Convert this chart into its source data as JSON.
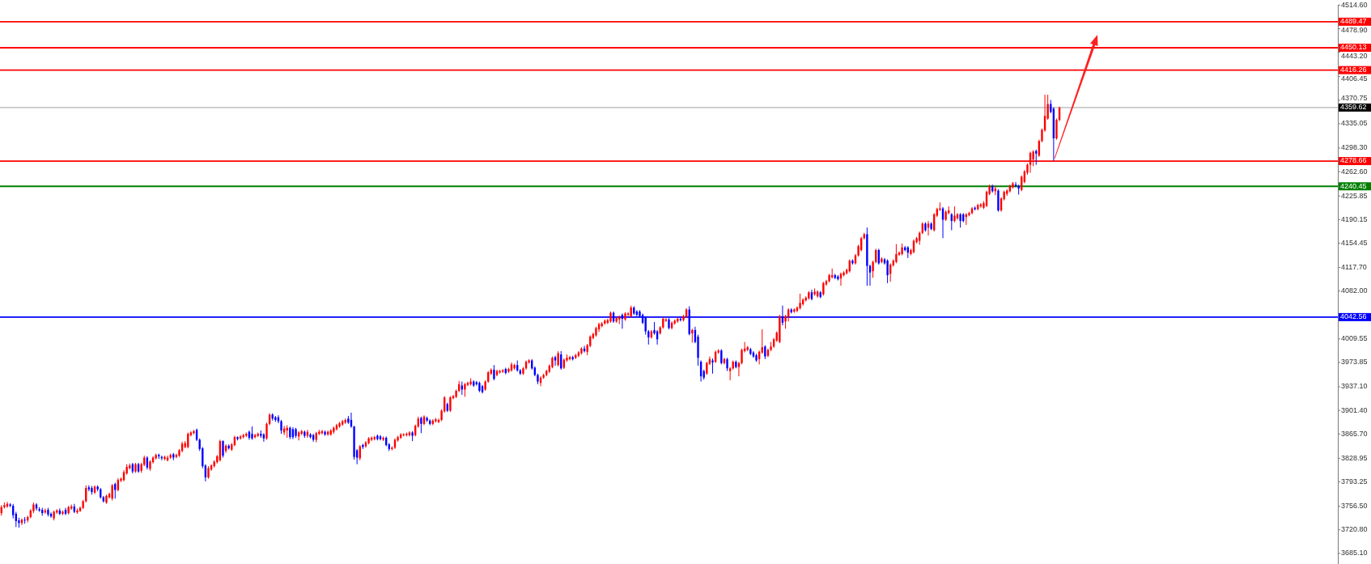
{
  "chart_data": {
    "type": "candlestick",
    "categories": [
      null,
      null,
      null,
      null,
      null,
      null,
      null,
      null,
      null,
      null,
      null,
      null,
      null,
      null,
      null,
      null,
      null,
      null,
      null,
      null,
      null,
      null,
      null,
      null,
      null,
      null,
      null,
      null,
      null,
      null,
      null,
      null,
      null,
      null,
      null,
      null,
      null,
      null,
      null,
      null,
      null,
      null,
      null,
      null,
      null,
      null,
      null,
      null,
      null,
      null,
      null,
      null,
      null,
      null,
      null,
      null,
      null,
      null,
      null,
      null,
      null,
      null,
      null,
      null,
      null,
      null,
      null,
      null,
      null,
      null,
      null,
      null,
      null,
      null,
      null,
      null,
      null,
      null,
      null,
      null,
      null,
      null,
      null,
      null,
      null,
      null,
      null,
      null,
      null,
      null,
      null,
      null,
      null,
      null,
      null,
      null,
      null,
      null,
      null,
      null,
      null,
      null,
      null,
      null,
      null,
      null,
      null,
      null,
      null,
      null,
      null,
      null,
      null,
      null,
      null,
      null,
      null,
      null,
      null,
      null,
      null,
      null,
      null,
      null,
      null,
      null,
      null,
      null,
      null,
      null,
      null,
      null,
      null,
      null,
      null,
      null,
      null,
      null,
      null,
      null,
      null,
      null,
      null,
      null,
      null,
      null,
      null,
      null,
      null,
      null,
      null,
      null,
      null,
      null,
      null,
      null,
      null,
      null,
      null,
      null,
      null,
      null,
      null,
      null,
      null,
      null,
      null,
      null,
      null,
      null,
      null,
      null,
      null,
      null,
      null,
      null,
      null,
      null,
      null,
      null,
      null,
      null,
      null,
      null,
      null,
      null,
      null,
      null,
      null,
      null,
      null,
      null,
      null,
      null,
      null,
      null,
      null,
      null,
      null,
      null,
      null,
      null,
      null,
      null,
      null,
      null,
      null,
      null,
      null,
      null,
      null,
      null,
      null,
      null,
      null,
      null,
      null,
      null,
      null,
      null,
      null,
      null,
      null,
      null,
      null,
      null,
      null,
      null,
      null,
      null,
      null,
      null,
      null,
      null,
      null,
      null,
      null,
      null,
      null,
      null,
      null,
      null,
      null,
      null,
      null,
      null,
      null,
      null,
      null,
      null,
      null,
      null,
      null,
      null,
      null,
      null,
      null,
      null,
      null,
      null,
      null,
      null,
      null,
      null,
      null,
      null,
      null,
      null,
      null,
      null,
      null,
      null,
      null,
      null,
      null,
      null,
      null,
      null,
      null,
      null,
      null,
      null,
      null,
      null,
      null,
      null,
      null,
      null,
      null,
      null,
      null,
      null,
      null,
      null,
      null,
      null,
      null,
      null,
      null,
      null,
      null,
      null,
      null,
      null,
      null,
      null,
      null,
      null,
      null,
      null,
      null,
      null,
      null,
      null,
      null,
      null,
      null,
      null,
      null,
      null,
      null,
      null,
      null,
      null,
      null,
      null,
      null,
      null,
      null,
      null,
      null,
      null,
      null,
      null,
      null,
      null,
      null,
      null,
      null,
      null,
      null,
      null,
      null,
      null,
      null,
      null,
      null,
      null,
      null,
      null,
      null,
      null,
      null,
      null,
      null,
      null,
      null,
      null,
      null,
      null,
      null,
      null,
      null,
      null,
      null,
      null,
      null,
      null,
      null,
      null,
      null,
      null,
      null,
      null,
      null,
      null,
      null,
      null,
      null,
      null,
      null,
      null,
      null,
      null,
      null,
      null,
      null,
      null,
      null,
      null,
      null,
      null,
      null,
      null,
      null,
      null,
      null,
      null,
      null,
      null,
      null,
      null,
      null,
      null,
      null,
      null,
      null,
      null,
      null,
      null,
      null,
      null,
      null,
      null,
      null,
      null,
      null,
      null,
      null,
      null,
      null,
      null,
      null,
      null,
      null,
      null,
      null,
      null,
      null,
      null,
      null,
      null,
      null,
      null,
      null,
      null,
      null,
      null,
      null,
      null,
      null,
      null,
      null,
      null,
      null,
      null,
      null,
      null,
      null,
      null,
      null,
      null,
      null,
      null,
      null,
      null,
      null,
      null,
      null
    ],
    "ohlc": [
      [
        3746,
        3758,
        3742,
        3755
      ],
      [
        3755,
        3762,
        3753,
        3758
      ],
      [
        3756,
        3763,
        3754,
        3760
      ],
      [
        3759,
        3761,
        3755,
        3757
      ],
      [
        3757,
        3760,
        3738,
        3743
      ],
      [
        3745,
        3748,
        3725,
        3734
      ],
      [
        3735,
        3739,
        3724,
        3731
      ],
      [
        3731,
        3738,
        3728,
        3736
      ],
      [
        3736,
        3740,
        3730,
        3735
      ],
      [
        3735,
        3742,
        3732,
        3740
      ],
      [
        3740,
        3752,
        3738,
        3750
      ],
      [
        3749,
        3762,
        3746,
        3759
      ],
      [
        3759,
        3761,
        3750,
        3753
      ],
      [
        3752,
        3755,
        3748,
        3750
      ],
      [
        3751,
        3754,
        3742,
        3746
      ],
      [
        3747,
        3753,
        3745,
        3750
      ],
      [
        3751,
        3754,
        3741,
        3744
      ],
      [
        3745,
        3747,
        3739,
        3741
      ],
      [
        3738,
        3750,
        3735,
        3748
      ],
      [
        3747,
        3752,
        3745,
        3750
      ],
      [
        3750,
        3753,
        3743,
        3745
      ],
      [
        3745,
        3750,
        3743,
        3748
      ],
      [
        3751,
        3754,
        3743,
        3745
      ],
      [
        3746,
        3757,
        3744,
        3755
      ],
      [
        3753,
        3759,
        3751,
        3756
      ],
      [
        3756,
        3760,
        3746,
        3748
      ],
      [
        3747,
        3753,
        3745,
        3750
      ],
      [
        3749,
        3756,
        3748,
        3754
      ],
      [
        3754,
        3766,
        3752,
        3764
      ],
      [
        3764,
        3788,
        3762,
        3784
      ],
      [
        3785,
        3788,
        3779,
        3782
      ],
      [
        3784,
        3787,
        3774,
        3778
      ],
      [
        3777,
        3788,
        3775,
        3786
      ],
      [
        3786,
        3788,
        3779,
        3782
      ],
      [
        3782,
        3784,
        3768,
        3770
      ],
      [
        3770,
        3772,
        3762,
        3764
      ],
      [
        3762,
        3774,
        3760,
        3772
      ],
      [
        3770,
        3777,
        3768,
        3775
      ],
      [
        3768,
        3790,
        3765,
        3788
      ],
      [
        3790,
        3792,
        3768,
        3781
      ],
      [
        3781,
        3799,
        3779,
        3796
      ],
      [
        3795,
        3800,
        3793,
        3798
      ],
      [
        3796,
        3811,
        3794,
        3808
      ],
      [
        3806,
        3820,
        3804,
        3816
      ],
      [
        3814,
        3821,
        3812,
        3818
      ],
      [
        3820,
        3822,
        3806,
        3809
      ],
      [
        3809,
        3822,
        3807,
        3820
      ],
      [
        3820,
        3822,
        3807,
        3809
      ],
      [
        3810,
        3822,
        3807,
        3820
      ],
      [
        3819,
        3833,
        3817,
        3830
      ],
      [
        3830,
        3832,
        3812,
        3815
      ],
      [
        3813,
        3826,
        3810,
        3824
      ],
      [
        3823,
        3832,
        3821,
        3830
      ],
      [
        3829,
        3836,
        3827,
        3834
      ],
      [
        3834,
        3836,
        3828,
        3832
      ],
      [
        3831,
        3833,
        3826,
        3829
      ],
      [
        3828,
        3833,
        3826,
        3831
      ],
      [
        3826,
        3833,
        3824,
        3830
      ],
      [
        3830,
        3836,
        3828,
        3834
      ],
      [
        3835,
        3837,
        3826,
        3830
      ],
      [
        3831,
        3836,
        3829,
        3834
      ],
      [
        3833,
        3843,
        3831,
        3841
      ],
      [
        3840,
        3854,
        3838,
        3851
      ],
      [
        3846,
        3855,
        3844,
        3852
      ],
      [
        3846,
        3868,
        3844,
        3866
      ],
      [
        3864,
        3870,
        3862,
        3868
      ],
      [
        3867,
        3872,
        3865,
        3870
      ],
      [
        3872,
        3874,
        3855,
        3857
      ],
      [
        3857,
        3859,
        3840,
        3843
      ],
      [
        3844,
        3846,
        3814,
        3817
      ],
      [
        3818,
        3820,
        3794,
        3800
      ],
      [
        3800,
        3817,
        3798,
        3814
      ],
      [
        3812,
        3820,
        3810,
        3818
      ],
      [
        3817,
        3826,
        3815,
        3824
      ],
      [
        3823,
        3834,
        3821,
        3832
      ],
      [
        3826,
        3857,
        3824,
        3855
      ],
      [
        3855,
        3856,
        3830,
        3833
      ],
      [
        3840,
        3850,
        3837,
        3848
      ],
      [
        3848,
        3850,
        3842,
        3844
      ],
      [
        3842,
        3852,
        3840,
        3850
      ],
      [
        3849,
        3863,
        3847,
        3861
      ],
      [
        3861,
        3862,
        3856,
        3858
      ],
      [
        3859,
        3864,
        3857,
        3862
      ],
      [
        3861,
        3866,
        3859,
        3864
      ],
      [
        3863,
        3868,
        3861,
        3866
      ],
      [
        3869,
        3871,
        3857,
        3860
      ],
      [
        3866,
        3877,
        3857,
        3859
      ],
      [
        3861,
        3866,
        3859,
        3864
      ],
      [
        3863,
        3868,
        3861,
        3866
      ],
      [
        3866,
        3871,
        3860,
        3863
      ],
      [
        3865,
        3867,
        3854,
        3859
      ],
      [
        3859,
        3883,
        3857,
        3881
      ],
      [
        3881,
        3897,
        3879,
        3895
      ],
      [
        3895,
        3897,
        3886,
        3889
      ],
      [
        3891,
        3893,
        3884,
        3887
      ],
      [
        3891,
        3894,
        3882,
        3885
      ],
      [
        3885,
        3887,
        3866,
        3871
      ],
      [
        3868,
        3878,
        3864,
        3874
      ],
      [
        3871,
        3879,
        3860,
        3875
      ],
      [
        3875,
        3877,
        3858,
        3861
      ],
      [
        3873,
        3876,
        3858,
        3861
      ],
      [
        3873,
        3875,
        3860,
        3863
      ],
      [
        3862,
        3870,
        3856,
        3868
      ],
      [
        3866,
        3872,
        3864,
        3870
      ],
      [
        3869,
        3871,
        3860,
        3863
      ],
      [
        3863,
        3872,
        3860,
        3869
      ],
      [
        3865,
        3867,
        3859,
        3861
      ],
      [
        3864,
        3866,
        3854,
        3857
      ],
      [
        3857,
        3869,
        3853,
        3867
      ],
      [
        3866,
        3872,
        3864,
        3869
      ],
      [
        3867,
        3872,
        3865,
        3870
      ],
      [
        3869,
        3871,
        3863,
        3865
      ],
      [
        3865,
        3871,
        3863,
        3869
      ],
      [
        3865,
        3873,
        3863,
        3871
      ],
      [
        3869,
        3877,
        3866,
        3875
      ],
      [
        3873,
        3881,
        3871,
        3879
      ],
      [
        3877,
        3884,
        3875,
        3882
      ],
      [
        3880,
        3887,
        3878,
        3885
      ],
      [
        3883,
        3889,
        3881,
        3887
      ],
      [
        3889,
        3893,
        3881,
        3883
      ],
      [
        3887,
        3898,
        3875,
        3877
      ],
      [
        3877,
        3878,
        3827,
        3831
      ],
      [
        3841,
        3843,
        3820,
        3830
      ],
      [
        3829,
        3849,
        3826,
        3847
      ],
      [
        3849,
        3851,
        3843,
        3846
      ],
      [
        3847,
        3855,
        3845,
        3853
      ],
      [
        3852,
        3861,
        3850,
        3859
      ],
      [
        3857,
        3862,
        3855,
        3860
      ],
      [
        3858,
        3863,
        3856,
        3861
      ],
      [
        3863,
        3865,
        3856,
        3858
      ],
      [
        3862,
        3864,
        3856,
        3858
      ],
      [
        3857,
        3862,
        3855,
        3860
      ],
      [
        3860,
        3862,
        3847,
        3849
      ],
      [
        3850,
        3852,
        3840,
        3843
      ],
      [
        3843,
        3847,
        3841,
        3845
      ],
      [
        3845,
        3859,
        3843,
        3857
      ],
      [
        3856,
        3863,
        3854,
        3861
      ],
      [
        3860,
        3867,
        3858,
        3865
      ],
      [
        3864,
        3867,
        3862,
        3865
      ],
      [
        3864,
        3868,
        3862,
        3866
      ],
      [
        3864,
        3870,
        3862,
        3868
      ],
      [
        3868,
        3870,
        3855,
        3863
      ],
      [
        3864,
        3880,
        3862,
        3878
      ],
      [
        3877,
        3892,
        3875,
        3889
      ],
      [
        3890,
        3892,
        3867,
        3881
      ],
      [
        3881,
        3894,
        3879,
        3892
      ],
      [
        3890,
        3892,
        3884,
        3886
      ],
      [
        3886,
        3888,
        3879,
        3881
      ],
      [
        3881,
        3888,
        3879,
        3886
      ],
      [
        3885,
        3890,
        3883,
        3888
      ],
      [
        3884,
        3889,
        3882,
        3887
      ],
      [
        3887,
        3903,
        3885,
        3901
      ],
      [
        3900,
        3923,
        3898,
        3921
      ],
      [
        3911,
        3913,
        3899,
        3901
      ],
      [
        3901,
        3923,
        3899,
        3921
      ],
      [
        3920,
        3925,
        3918,
        3923
      ],
      [
        3922,
        3933,
        3920,
        3931
      ],
      [
        3931,
        3946,
        3929,
        3941
      ],
      [
        3939,
        3945,
        3925,
        3933
      ],
      [
        3933,
        3943,
        3922,
        3941
      ],
      [
        3940,
        3945,
        3938,
        3943
      ],
      [
        3941,
        3950,
        3939,
        3945
      ],
      [
        3945,
        3947,
        3937,
        3939
      ],
      [
        3944,
        3946,
        3939,
        3941
      ],
      [
        3943,
        3945,
        3929,
        3931
      ],
      [
        3938,
        3940,
        3927,
        3929
      ],
      [
        3933,
        3947,
        3931,
        3945
      ],
      [
        3945,
        3961,
        3943,
        3959
      ],
      [
        3957,
        3965,
        3955,
        3963
      ],
      [
        3963,
        3970,
        3947,
        3949
      ],
      [
        3955,
        3963,
        3953,
        3961
      ],
      [
        3959,
        3963,
        3957,
        3961
      ],
      [
        3960,
        3964,
        3958,
        3962
      ],
      [
        3964,
        3966,
        3956,
        3958
      ],
      [
        3960,
        3966,
        3958,
        3964
      ],
      [
        3962,
        3974,
        3960,
        3971
      ],
      [
        3965,
        3972,
        3963,
        3970
      ],
      [
        3970,
        3977,
        3960,
        3962
      ],
      [
        3962,
        3964,
        3955,
        3957
      ],
      [
        3957,
        3967,
        3955,
        3965
      ],
      [
        3965,
        3977,
        3963,
        3975
      ],
      [
        3974,
        3979,
        3972,
        3977
      ],
      [
        3977,
        3979,
        3963,
        3965
      ],
      [
        3966,
        3968,
        3953,
        3955
      ],
      [
        3955,
        3957,
        3941,
        3945
      ],
      [
        3943,
        3953,
        3938,
        3951
      ],
      [
        3951,
        3957,
        3949,
        3955
      ],
      [
        3955,
        3963,
        3953,
        3961
      ],
      [
        3960,
        3971,
        3958,
        3969
      ],
      [
        3967,
        3983,
        3965,
        3981
      ],
      [
        3982,
        3984,
        3969,
        3977
      ],
      [
        3970,
        3991,
        3968,
        3988
      ],
      [
        3986,
        3991,
        3963,
        3965
      ],
      [
        3966,
        3980,
        3964,
        3978
      ],
      [
        3977,
        3986,
        3975,
        3981
      ],
      [
        3979,
        3984,
        3977,
        3982
      ],
      [
        3982,
        3984,
        3977,
        3979
      ],
      [
        3981,
        3987,
        3979,
        3985
      ],
      [
        3984,
        3991,
        3982,
        3989
      ],
      [
        3988,
        3997,
        3986,
        3995
      ],
      [
        3995,
        3999,
        3989,
        3991
      ],
      [
        3990,
        4002,
        3985,
        4000
      ],
      [
        3999,
        4015,
        3997,
        4013
      ],
      [
        4011,
        4019,
        4009,
        4017
      ],
      [
        4015,
        4028,
        4013,
        4026
      ],
      [
        4024,
        4034,
        4020,
        4032
      ],
      [
        4029,
        4035,
        4027,
        4033
      ],
      [
        4033,
        4039,
        4031,
        4037
      ],
      [
        4034,
        4040,
        4032,
        4038
      ],
      [
        4036,
        4051,
        4034,
        4049
      ],
      [
        4049,
        4051,
        4034,
        4036
      ],
      [
        4036,
        4043,
        4034,
        4041
      ],
      [
        4039,
        4045,
        4032,
        4043
      ],
      [
        4046,
        4048,
        4025,
        4040
      ],
      [
        4039,
        4050,
        4037,
        4048
      ],
      [
        4046,
        4050,
        4044,
        4048
      ],
      [
        4044,
        4060,
        4042,
        4057
      ],
      [
        4057,
        4059,
        4046,
        4048
      ],
      [
        4051,
        4053,
        4044,
        4046
      ],
      [
        4051,
        4053,
        4042,
        4044
      ],
      [
        4046,
        4048,
        4032,
        4034
      ],
      [
        4042,
        4044,
        4016,
        4021
      ],
      [
        4021,
        4023,
        4001,
        4012
      ],
      [
        4012,
        4023,
        4010,
        4021
      ],
      [
        4023,
        4035,
        4016,
        4018
      ],
      [
        4021,
        4023,
        4001,
        4009
      ],
      [
        4018,
        4029,
        4016,
        4027
      ],
      [
        4027,
        4042,
        4025,
        4040
      ],
      [
        4037,
        4041,
        4035,
        4039
      ],
      [
        4039,
        4041,
        4024,
        4026
      ],
      [
        4026,
        4036,
        4024,
        4034
      ],
      [
        4033,
        4039,
        4031,
        4037
      ],
      [
        4036,
        4042,
        4034,
        4040
      ],
      [
        4040,
        4042,
        4036,
        4038
      ],
      [
        4038,
        4046,
        4036,
        4044
      ],
      [
        4043,
        4056,
        4041,
        4054
      ],
      [
        4054,
        4059,
        4015,
        4017
      ],
      [
        4018,
        4025,
        4004,
        4023
      ],
      [
        4023,
        4028,
        4003,
        4005
      ],
      [
        4013,
        4016,
        3969,
        3981
      ],
      [
        3975,
        3977,
        3945,
        3953
      ],
      [
        3961,
        3963,
        3948,
        3951
      ],
      [
        3957,
        3975,
        3955,
        3973
      ],
      [
        3972,
        3983,
        3970,
        3979
      ],
      [
        3977,
        3980,
        3957,
        3974
      ],
      [
        3975,
        3992,
        3973,
        3990
      ],
      [
        3989,
        3994,
        3987,
        3992
      ],
      [
        3992,
        3994,
        3971,
        3973
      ],
      [
        3973,
        3981,
        3971,
        3979
      ],
      [
        3979,
        3981,
        3961,
        3965
      ],
      [
        3961,
        3967,
        3947,
        3965
      ],
      [
        3965,
        3977,
        3963,
        3975
      ],
      [
        3975,
        3977,
        3965,
        3967
      ],
      [
        3967,
        3975,
        3953,
        3973
      ],
      [
        3973,
        3995,
        3971,
        3993
      ],
      [
        3991,
        4005,
        3989,
        3995
      ],
      [
        3993,
        3999,
        3991,
        3997
      ],
      [
        3994,
        3996,
        3985,
        3987
      ],
      [
        3989,
        3991,
        3981,
        3983
      ],
      [
        3985,
        3987,
        3975,
        3977
      ],
      [
        3979,
        3992,
        3971,
        3990
      ],
      [
        3989,
        4024,
        3987,
        3997
      ],
      [
        3998,
        4000,
        3979,
        3983
      ],
      [
        3984,
        3995,
        3982,
        3993
      ],
      [
        3993,
        4005,
        3991,
        3998
      ],
      [
        3998,
        4011,
        3996,
        4009
      ],
      [
        4007,
        4021,
        4005,
        4019
      ],
      [
        4005,
        4046,
        4003,
        4044
      ],
      [
        4044,
        4060,
        4030,
        4034
      ],
      [
        4036,
        4046,
        4025,
        4044
      ],
      [
        4043,
        4056,
        4036,
        4054
      ],
      [
        4054,
        4056,
        4048,
        4050
      ],
      [
        4051,
        4056,
        4049,
        4054
      ],
      [
        4052,
        4059,
        4050,
        4057
      ],
      [
        4056,
        4078,
        4054,
        4064
      ],
      [
        4062,
        4071,
        4060,
        4069
      ],
      [
        4068,
        4074,
        4066,
        4072
      ],
      [
        4071,
        4082,
        4069,
        4080
      ],
      [
        4080,
        4084,
        4068,
        4070
      ],
      [
        4077,
        4086,
        4075,
        4081
      ],
      [
        4074,
        4083,
        4072,
        4081
      ],
      [
        4080,
        4082,
        4071,
        4073
      ],
      [
        4077,
        4096,
        4075,
        4094
      ],
      [
        4092,
        4099,
        4090,
        4097
      ],
      [
        4097,
        4108,
        4095,
        4106
      ],
      [
        4103,
        4116,
        4101,
        4106
      ],
      [
        4106,
        4108,
        4100,
        4102
      ],
      [
        4104,
        4106,
        4098,
        4100
      ],
      [
        4101,
        4110,
        4090,
        4108
      ],
      [
        4106,
        4112,
        4104,
        4110
      ],
      [
        4109,
        4116,
        4107,
        4114
      ],
      [
        4112,
        4130,
        4110,
        4128
      ],
      [
        4128,
        4130,
        4122,
        4124
      ],
      [
        4124,
        4138,
        4122,
        4136
      ],
      [
        4136,
        4152,
        4134,
        4150
      ],
      [
        4144,
        4164,
        4142,
        4162
      ],
      [
        4162,
        4170,
        4160,
        4168
      ],
      [
        4168,
        4178,
        4090,
        4120
      ],
      [
        4120,
        4122,
        4090,
        4110
      ],
      [
        4112,
        4128,
        4102,
        4126
      ],
      [
        4126,
        4146,
        4124,
        4144
      ],
      [
        4144,
        4146,
        4122,
        4124
      ],
      [
        4126,
        4133,
        4124,
        4131
      ],
      [
        4130,
        4132,
        4122,
        4124
      ],
      [
        4128,
        4130,
        4094,
        4106
      ],
      [
        4108,
        4124,
        4096,
        4122
      ],
      [
        4121,
        4130,
        4119,
        4128
      ],
      [
        4126,
        4153,
        4124,
        4138
      ],
      [
        4137,
        4142,
        4135,
        4140
      ],
      [
        4138,
        4154,
        4136,
        4148
      ],
      [
        4148,
        4150,
        4142,
        4144
      ],
      [
        4148,
        4150,
        4132,
        4140
      ],
      [
        4138,
        4146,
        4136,
        4144
      ],
      [
        4141,
        4160,
        4139,
        4158
      ],
      [
        4156,
        4164,
        4154,
        4162
      ],
      [
        4158,
        4172,
        4152,
        4170
      ],
      [
        4170,
        4186,
        4168,
        4184
      ],
      [
        4184,
        4186,
        4172,
        4174
      ],
      [
        4178,
        4188,
        4166,
        4184
      ],
      [
        4184,
        4186,
        4174,
        4176
      ],
      [
        4174,
        4200,
        4172,
        4198
      ],
      [
        4196,
        4208,
        4194,
        4206
      ],
      [
        4205,
        4216,
        4203,
        4207
      ],
      [
        4207,
        4209,
        4162,
        4190
      ],
      [
        4190,
        4204,
        4188,
        4202
      ],
      [
        4200,
        4210,
        4198,
        4204
      ],
      [
        4198,
        4200,
        4174,
        4188
      ],
      [
        4188,
        4210,
        4186,
        4196
      ],
      [
        4192,
        4200,
        4190,
        4198
      ],
      [
        4198,
        4200,
        4178,
        4188
      ],
      [
        4198,
        4200,
        4186,
        4188
      ],
      [
        4194,
        4200,
        4182,
        4198
      ],
      [
        4197,
        4202,
        4195,
        4200
      ],
      [
        4200,
        4209,
        4198,
        4207
      ],
      [
        4208,
        4210,
        4204,
        4206
      ],
      [
        4206,
        4214,
        4204,
        4212
      ],
      [
        4210,
        4215,
        4208,
        4213
      ],
      [
        4208,
        4218,
        4206,
        4215
      ],
      [
        4211,
        4234,
        4209,
        4232
      ],
      [
        4229,
        4243,
        4227,
        4241
      ],
      [
        4241,
        4243,
        4231,
        4233
      ],
      [
        4233,
        4241,
        4227,
        4237
      ],
      [
        4234,
        4236,
        4202,
        4204
      ],
      [
        4204,
        4224,
        4202,
        4222
      ],
      [
        4221,
        4234,
        4219,
        4232
      ],
      [
        4229,
        4236,
        4226,
        4234
      ],
      [
        4233,
        4243,
        4231,
        4241
      ],
      [
        4239,
        4247,
        4237,
        4245
      ],
      [
        4243,
        4247,
        4239,
        4241
      ],
      [
        4241,
        4243,
        4228,
        4237
      ],
      [
        4235,
        4257,
        4233,
        4255
      ],
      [
        4247,
        4265,
        4245,
        4263
      ],
      [
        4261,
        4275,
        4258,
        4273
      ],
      [
        4273,
        4293,
        4261,
        4291
      ],
      [
        4281,
        4295,
        4271,
        4293
      ],
      [
        4294,
        4296,
        4273,
        4290
      ],
      [
        4287,
        4311,
        4285,
        4309
      ],
      [
        4309,
        4328,
        4307,
        4326
      ],
      [
        4325,
        4379,
        4323,
        4347
      ],
      [
        4343,
        4379,
        4341,
        4365
      ],
      [
        4365,
        4371,
        4351,
        4353
      ],
      [
        4358,
        4360,
        4279,
        4313
      ],
      [
        4313,
        4343,
        4311,
        4341
      ],
      [
        4341,
        4361,
        4339,
        4359.62
      ],
      null,
      null,
      null,
      null,
      null,
      null,
      null,
      null,
      null,
      null,
      null,
      null,
      null,
      null,
      null,
      null,
      null,
      null,
      null,
      null,
      null,
      null,
      null,
      null,
      null,
      null,
      null,
      null,
      null,
      null,
      null,
      null,
      null,
      null,
      null,
      null,
      null,
      null,
      null,
      null,
      null,
      null,
      null,
      null,
      null,
      null,
      null,
      null,
      null,
      null,
      null,
      null,
      null,
      null,
      null,
      null,
      null,
      null,
      null,
      null,
      null,
      null,
      null,
      null,
      null,
      null,
      null,
      null,
      null,
      null,
      null,
      null,
      null,
      null,
      null,
      null,
      null,
      null,
      null,
      null,
      null,
      null,
      null,
      null,
      null,
      null,
      null,
      null,
      null,
      null,
      null,
      null,
      null,
      null,
      null
    ],
    "ylim": [
      3669,
      4515
    ],
    "yticks": [
      {
        "value": 4514.6,
        "label": "4514.60"
      },
      {
        "value": 4478.9,
        "label": "4478.90"
      },
      {
        "value": 4443.2,
        "label": "4443.20"
      },
      {
        "value": 4406.45,
        "label": "4406.45"
      },
      {
        "value": 4370.75,
        "label": "4370.75"
      },
      {
        "value": 4335.05,
        "label": "4335.05"
      },
      {
        "value": 4298.3,
        "label": "4298.30"
      },
      {
        "value": 4262.6,
        "label": "4262.60"
      },
      {
        "value": 4225.85,
        "label": "4225.85"
      },
      {
        "value": 4190.15,
        "label": "4190.15"
      },
      {
        "value": 4154.45,
        "label": "4154.45"
      },
      {
        "value": 4117.7,
        "label": "4117.70"
      },
      {
        "value": 4082,
        "label": "4082.00"
      },
      {
        "value": 4009.55,
        "label": "4009.55"
      },
      {
        "value": 3973.85,
        "label": "3973.85"
      },
      {
        "value": 3937.1,
        "label": "3937.10"
      },
      {
        "value": 3901.4,
        "label": "3901.40"
      },
      {
        "value": 3865.7,
        "label": "3865.70"
      },
      {
        "value": 3828.95,
        "label": "3828.95"
      },
      {
        "value": 3793.25,
        "label": "3793.25"
      },
      {
        "value": 3756.5,
        "label": "3756.50"
      },
      {
        "value": 3720.8,
        "label": "3720.80"
      },
      {
        "value": 3685.1,
        "label": "3685.10"
      }
    ],
    "ref_lines": [
      {
        "axis": "y",
        "value": 4489.47,
        "label": "4489.47",
        "color": "#ff0000"
      },
      {
        "axis": "y",
        "value": 4450.13,
        "label": "4450.13",
        "color": "#ff0000"
      },
      {
        "axis": "y",
        "value": 4416.26,
        "label": "4416.26",
        "color": "#ff0000"
      },
      {
        "axis": "y",
        "value": 4359.62,
        "label": "4359.62",
        "color": "#c8c8c8"
      },
      {
        "axis": "y",
        "value": 4278.66,
        "label": "4278.66",
        "color": "#ff0000"
      },
      {
        "axis": "y",
        "value": 4240.45,
        "label": "4240.45",
        "color": "#008000"
      },
      {
        "axis": "y",
        "value": 4042.56,
        "label": "4042.56",
        "color": "#0000ff"
      }
    ],
    "tick_labels": "y"
  }
}
